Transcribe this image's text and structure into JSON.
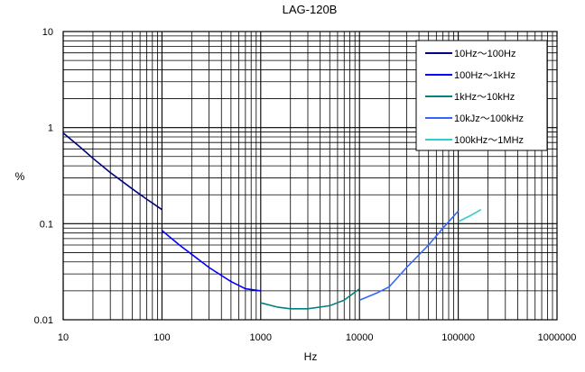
{
  "chart_data": {
    "type": "line",
    "title": "LAG-120B",
    "xlabel": "Hz",
    "ylabel": "%",
    "xscale": "log",
    "yscale": "log",
    "xlim": [
      10,
      1000000
    ],
    "ylim": [
      0.01,
      10
    ],
    "x_tick_labels": [
      "10",
      "100",
      "1000",
      "10000",
      "100000",
      "1000000"
    ],
    "y_tick_labels": [
      "10",
      "1",
      "0.1",
      "0.01"
    ],
    "grid": true,
    "legend_position": "top-right",
    "series": [
      {
        "name": "10Hz〜100Hz",
        "color": "#000080",
        "points": [
          [
            10,
            0.88
          ],
          [
            15,
            0.62
          ],
          [
            20,
            0.48
          ],
          [
            30,
            0.34
          ],
          [
            50,
            0.23
          ],
          [
            70,
            0.18
          ],
          [
            100,
            0.14
          ]
        ]
      },
      {
        "name": "100Hz〜1kHz",
        "color": "#0000ff",
        "points": [
          [
            100,
            0.085
          ],
          [
            150,
            0.06
          ],
          [
            200,
            0.048
          ],
          [
            300,
            0.035
          ],
          [
            500,
            0.025
          ],
          [
            700,
            0.021
          ],
          [
            1000,
            0.02
          ]
        ]
      },
      {
        "name": "1kHz〜10kHz",
        "color": "#008080",
        "points": [
          [
            1000,
            0.015
          ],
          [
            1500,
            0.0135
          ],
          [
            2000,
            0.013
          ],
          [
            3000,
            0.013
          ],
          [
            5000,
            0.014
          ],
          [
            7000,
            0.016
          ],
          [
            10000,
            0.021
          ]
        ]
      },
      {
        "name": "10kJz〜100kHz",
        "color": "#3366ff",
        "points": [
          [
            10000,
            0.016
          ],
          [
            15000,
            0.019
          ],
          [
            20000,
            0.022
          ],
          [
            30000,
            0.035
          ],
          [
            50000,
            0.06
          ],
          [
            70000,
            0.09
          ],
          [
            100000,
            0.135
          ]
        ]
      },
      {
        "name": "100kHz〜1MHz",
        "color": "#33cccc",
        "points": [
          [
            100000,
            0.105
          ],
          [
            130000,
            0.12
          ],
          [
            170000,
            0.14
          ]
        ]
      }
    ]
  }
}
